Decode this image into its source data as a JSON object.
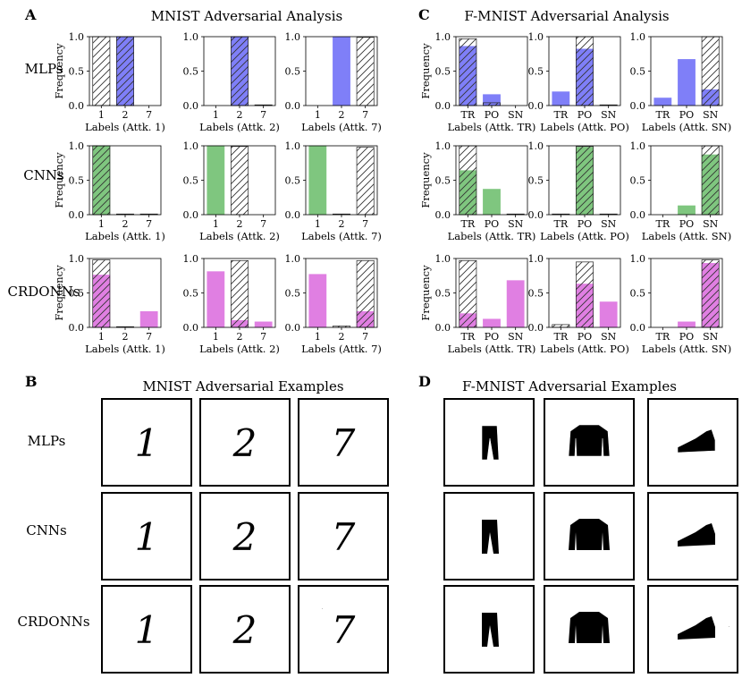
{
  "panels": {
    "A": {
      "letter": "A",
      "title": "MNIST Adversarial Analysis"
    },
    "B": {
      "letter": "B",
      "title": "MNIST Adversarial Examples"
    },
    "C": {
      "letter": "C",
      "title": "F-MNIST Adversarial Analysis"
    },
    "D": {
      "letter": "D",
      "title": "F-MNIST Adversarial Examples"
    }
  },
  "row_labels": [
    "MLPs",
    "CNNs",
    "CRDONNs"
  ],
  "colors": {
    "MLPs": "#7f7ff8",
    "CNNs": "#7fc67f",
    "CRDONNs": "#e07fe2",
    "hatch": "#333333"
  },
  "images": {
    "mnist_digits": [
      "1",
      "2",
      "7"
    ],
    "fmnist_items": [
      "trouser-icon",
      "pullover-icon",
      "sneaker-icon"
    ]
  },
  "chart_data": [
    {
      "type": "bar",
      "panel": "A",
      "row": "MLPs",
      "attack": "1",
      "categories": [
        "1",
        "2",
        "7"
      ],
      "series": [
        {
          "name": "label frequency",
          "values": [
            0.0,
            1.0,
            0.0
          ]
        },
        {
          "name": "hatched",
          "values": [
            1.0,
            1.0,
            0.0
          ]
        }
      ],
      "xlabel": "Labels (Attk. 1)",
      "ylabel": "Frequency",
      "ylim": [
        0,
        1
      ],
      "yticks": [
        "0.0",
        "0.5",
        "1.0"
      ]
    },
    {
      "type": "bar",
      "panel": "A",
      "row": "MLPs",
      "attack": "2",
      "categories": [
        "1",
        "2",
        "7"
      ],
      "series": [
        {
          "name": "label frequency",
          "values": [
            0.0,
            1.0,
            0.0
          ]
        },
        {
          "name": "hatched",
          "values": [
            0.0,
            1.0,
            0.01
          ]
        }
      ],
      "xlabel": "Labels (Attk. 2)",
      "ylabel": "",
      "ylim": [
        0,
        1
      ],
      "yticks": [
        "0.0",
        "0.5",
        "1.0"
      ]
    },
    {
      "type": "bar",
      "panel": "A",
      "row": "MLPs",
      "attack": "7",
      "categories": [
        "1",
        "2",
        "7"
      ],
      "series": [
        {
          "name": "label frequency",
          "values": [
            0.0,
            1.0,
            0.0
          ]
        },
        {
          "name": "hatched",
          "values": [
            0.0,
            0.0,
            0.99
          ]
        }
      ],
      "xlabel": "Labels (Attk. 7)",
      "ylabel": "",
      "ylim": [
        0,
        1
      ],
      "yticks": [
        "0.0",
        "0.5",
        "1.0"
      ]
    },
    {
      "type": "bar",
      "panel": "A",
      "row": "CNNs",
      "attack": "1",
      "categories": [
        "1",
        "2",
        "7"
      ],
      "series": [
        {
          "name": "label frequency",
          "values": [
            1.0,
            0.0,
            0.0
          ]
        },
        {
          "name": "hatched",
          "values": [
            1.0,
            0.01,
            0.01
          ]
        }
      ],
      "xlabel": "Labels (Attk. 1)",
      "ylabel": "Frequency",
      "ylim": [
        0,
        1
      ],
      "yticks": [
        "0.0",
        "0.5",
        "1.0"
      ]
    },
    {
      "type": "bar",
      "panel": "A",
      "row": "CNNs",
      "attack": "2",
      "categories": [
        "1",
        "2",
        "7"
      ],
      "series": [
        {
          "name": "label frequency",
          "values": [
            1.0,
            0.0,
            0.0
          ]
        },
        {
          "name": "hatched",
          "values": [
            0.0,
            0.99,
            0.0
          ]
        }
      ],
      "xlabel": "Labels (Attk. 2)",
      "ylabel": "",
      "ylim": [
        0,
        1
      ],
      "yticks": [
        "0.0",
        "0.5",
        "1.0"
      ]
    },
    {
      "type": "bar",
      "panel": "A",
      "row": "CNNs",
      "attack": "7",
      "categories": [
        "1",
        "2",
        "7"
      ],
      "series": [
        {
          "name": "label frequency",
          "values": [
            1.0,
            0.0,
            0.0
          ]
        },
        {
          "name": "hatched",
          "values": [
            0.0,
            0.01,
            0.98
          ]
        }
      ],
      "xlabel": "Labels (Attk. 7)",
      "ylabel": "",
      "ylim": [
        0,
        1
      ],
      "yticks": [
        "0.0",
        "0.5",
        "1.0"
      ]
    },
    {
      "type": "bar",
      "panel": "A",
      "row": "CRDONNs",
      "attack": "1",
      "categories": [
        "1",
        "2",
        "7"
      ],
      "series": [
        {
          "name": "label frequency",
          "values": [
            0.76,
            0.0,
            0.23
          ]
        },
        {
          "name": "hatched",
          "values": [
            0.98,
            0.01,
            0.0
          ]
        }
      ],
      "xlabel": "Labels (Attk. 1)",
      "ylabel": "Frequency",
      "ylim": [
        0,
        1
      ],
      "yticks": [
        "0.0",
        "0.5",
        "1.0"
      ]
    },
    {
      "type": "bar",
      "panel": "A",
      "row": "CRDONNs",
      "attack": "2",
      "categories": [
        "1",
        "2",
        "7"
      ],
      "series": [
        {
          "name": "label frequency",
          "values": [
            0.81,
            0.1,
            0.08
          ]
        },
        {
          "name": "hatched",
          "values": [
            0.0,
            0.97,
            0.0
          ]
        }
      ],
      "xlabel": "Labels (Attk. 2)",
      "ylabel": "",
      "ylim": [
        0,
        1
      ],
      "yticks": [
        "0.0",
        "0.5",
        "1.0"
      ]
    },
    {
      "type": "bar",
      "panel": "A",
      "row": "CRDONNs",
      "attack": "7",
      "categories": [
        "1",
        "2",
        "7"
      ],
      "series": [
        {
          "name": "label frequency",
          "values": [
            0.77,
            0.0,
            0.23
          ]
        },
        {
          "name": "hatched",
          "values": [
            0.0,
            0.02,
            0.97
          ]
        }
      ],
      "xlabel": "Labels (Attk. 7)",
      "ylabel": "",
      "ylim": [
        0,
        1
      ],
      "yticks": [
        "0.0",
        "0.5",
        "1.0"
      ]
    },
    {
      "type": "bar",
      "panel": "C",
      "row": "MLPs",
      "attack": "TR",
      "categories": [
        "TR",
        "PO",
        "SN"
      ],
      "series": [
        {
          "name": "label frequency",
          "values": [
            0.86,
            0.16,
            0.0
          ]
        },
        {
          "name": "hatched",
          "values": [
            0.97,
            0.04,
            0.0
          ]
        }
      ],
      "xlabel": "Labels (Attk. TR)",
      "ylabel": "Frequency",
      "ylim": [
        0,
        1
      ],
      "yticks": [
        "0.0",
        "0.5",
        "1.0"
      ]
    },
    {
      "type": "bar",
      "panel": "C",
      "row": "MLPs",
      "attack": "PO",
      "categories": [
        "TR",
        "PO",
        "SN"
      ],
      "series": [
        {
          "name": "label frequency",
          "values": [
            0.2,
            0.82,
            0.0
          ]
        },
        {
          "name": "hatched",
          "values": [
            0.0,
            1.0,
            0.01
          ]
        }
      ],
      "xlabel": "Labels (Attk. PO)",
      "ylabel": "",
      "ylim": [
        0,
        1
      ],
      "yticks": [
        "0.0",
        "0.5",
        "1.0"
      ]
    },
    {
      "type": "bar",
      "panel": "C",
      "row": "MLPs",
      "attack": "SN",
      "categories": [
        "TR",
        "PO",
        "SN"
      ],
      "series": [
        {
          "name": "label frequency",
          "values": [
            0.11,
            0.67,
            0.23
          ]
        },
        {
          "name": "hatched",
          "values": [
            0.0,
            0.0,
            1.0
          ]
        }
      ],
      "xlabel": "Labels (Attk. SN)",
      "ylabel": "",
      "ylim": [
        0,
        1
      ],
      "yticks": [
        "0.0",
        "0.5",
        "1.0"
      ]
    },
    {
      "type": "bar",
      "panel": "C",
      "row": "CNNs",
      "attack": "TR",
      "categories": [
        "TR",
        "PO",
        "SN"
      ],
      "series": [
        {
          "name": "label frequency",
          "values": [
            0.64,
            0.37,
            0.0
          ]
        },
        {
          "name": "hatched",
          "values": [
            1.0,
            0.0,
            0.01
          ]
        }
      ],
      "xlabel": "Labels (Attk. TR)",
      "ylabel": "Frequency",
      "ylim": [
        0,
        1
      ],
      "yticks": [
        "0.0",
        "0.5",
        "1.0"
      ]
    },
    {
      "type": "bar",
      "panel": "C",
      "row": "CNNs",
      "attack": "PO",
      "categories": [
        "TR",
        "PO",
        "SN"
      ],
      "series": [
        {
          "name": "label frequency",
          "values": [
            0.0,
            0.98,
            0.0
          ]
        },
        {
          "name": "hatched",
          "values": [
            0.01,
            0.99,
            0.01
          ]
        }
      ],
      "xlabel": "Labels (Attk. PO)",
      "ylabel": "",
      "ylim": [
        0,
        1
      ],
      "yticks": [
        "0.0",
        "0.5",
        "1.0"
      ]
    },
    {
      "type": "bar",
      "panel": "C",
      "row": "CNNs",
      "attack": "SN",
      "categories": [
        "TR",
        "PO",
        "SN"
      ],
      "series": [
        {
          "name": "label frequency",
          "values": [
            0.0,
            0.13,
            0.87
          ]
        },
        {
          "name": "hatched",
          "values": [
            0.0,
            0.0,
            1.0
          ]
        }
      ],
      "xlabel": "Labels (Attk. SN)",
      "ylabel": "",
      "ylim": [
        0,
        1
      ],
      "yticks": [
        "0.0",
        "0.5",
        "1.0"
      ]
    },
    {
      "type": "bar",
      "panel": "C",
      "row": "CRDONNs",
      "attack": "TR",
      "categories": [
        "TR",
        "PO",
        "SN"
      ],
      "series": [
        {
          "name": "label frequency",
          "values": [
            0.2,
            0.12,
            0.68
          ]
        },
        {
          "name": "hatched",
          "values": [
            0.97,
            0.0,
            0.0
          ]
        }
      ],
      "xlabel": "Labels (Attk. TR)",
      "ylabel": "Frequency",
      "ylim": [
        0,
        1
      ],
      "yticks": [
        "0.0",
        "0.5",
        "1.0"
      ]
    },
    {
      "type": "bar",
      "panel": "C",
      "row": "CRDONNs",
      "attack": "PO",
      "categories": [
        "TR",
        "PO",
        "SN"
      ],
      "series": [
        {
          "name": "label frequency",
          "values": [
            0.0,
            0.63,
            0.37
          ]
        },
        {
          "name": "hatched",
          "values": [
            0.04,
            0.95,
            0.0
          ]
        }
      ],
      "xlabel": "Labels (Attk. PO)",
      "ylabel": "",
      "ylim": [
        0,
        1
      ],
      "yticks": [
        "0.0",
        "0.5",
        "1.0"
      ]
    },
    {
      "type": "bar",
      "panel": "C",
      "row": "CRDONNs",
      "attack": "SN",
      "categories": [
        "TR",
        "PO",
        "SN"
      ],
      "series": [
        {
          "name": "label frequency",
          "values": [
            0.0,
            0.08,
            0.93
          ]
        },
        {
          "name": "hatched",
          "values": [
            0.0,
            0.0,
            0.98
          ]
        }
      ],
      "xlabel": "Labels (Attk. SN)",
      "ylabel": "",
      "ylim": [
        0,
        1
      ],
      "yticks": [
        "0.0",
        "0.5",
        "1.0"
      ]
    }
  ]
}
